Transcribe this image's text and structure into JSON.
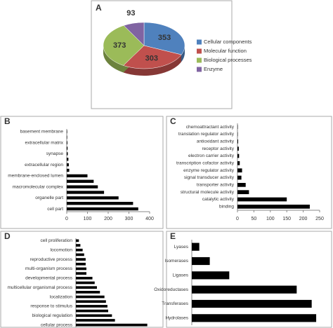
{
  "chart_data": [
    {
      "type": "pie",
      "panel": "A",
      "categories": [
        "Cellular components",
        "Molecular function",
        "Biological processes",
        "Enzyme"
      ],
      "values": [
        353,
        303,
        373,
        93
      ],
      "colors": [
        "#4f81bd",
        "#c0504d",
        "#9bbb59",
        "#8064a2"
      ],
      "legend": "right"
    },
    {
      "type": "hbar",
      "panel": "B",
      "categories": [
        "basement membrane",
        null,
        "extracellular matrix",
        null,
        "synapse",
        null,
        "extracellular region",
        null,
        "membrane-enclosed lumen",
        null,
        "macromolecular complex",
        null,
        "organelle part",
        null,
        "cell part"
      ],
      "values": [
        2,
        2,
        3,
        4,
        5,
        8,
        10,
        12,
        100,
        130,
        150,
        180,
        250,
        320,
        345
      ],
      "color": "#000000",
      "xlim": [
        0,
        400
      ],
      "xticks": [
        0,
        100,
        200,
        300,
        400
      ]
    },
    {
      "type": "hbar",
      "panel": "C",
      "categories": [
        "chemoattractant activity",
        "translation regulator activity",
        "antioxidant activity",
        "receptor activity",
        "electron carrier activity",
        "transcription cofactor activity",
        "enzyme regulator activity",
        "signal transducer activity",
        "transporter activity",
        "structural molecule activity",
        "catalytic activity",
        "binding"
      ],
      "values": [
        1,
        1,
        2,
        4,
        5,
        7,
        14,
        12,
        25,
        35,
        150,
        220
      ],
      "color": "#000000",
      "xlim": [
        0,
        250
      ],
      "xticks": [
        0,
        50,
        100,
        150,
        200,
        250
      ]
    },
    {
      "type": "hbar",
      "panel": "D",
      "categories": [
        "cell proliferation",
        null,
        "locomotion",
        null,
        "reproductive process",
        null,
        "multi-organism process",
        null,
        "developmental process",
        null,
        "multicellular organismal process",
        null,
        "localization",
        null,
        "response to stimulus",
        null,
        "biological regulation",
        null,
        "cellular process"
      ],
      "values": [
        4,
        6,
        9,
        11,
        13,
        13,
        14,
        14,
        22,
        25,
        28,
        32,
        38,
        40,
        42,
        43,
        48,
        52,
        95
      ],
      "color": "#000000",
      "xlim": [
        0,
        100
      ]
    },
    {
      "type": "hbar",
      "panel": "E",
      "categories": [
        "Lyases",
        "Isomerases",
        "Ligases",
        "Oxidoreductases",
        "Transferases",
        "Hydrolases"
      ],
      "values": [
        5,
        12,
        25,
        70,
        80,
        83
      ],
      "color": "#000000",
      "xlim": [
        0,
        90
      ]
    }
  ]
}
